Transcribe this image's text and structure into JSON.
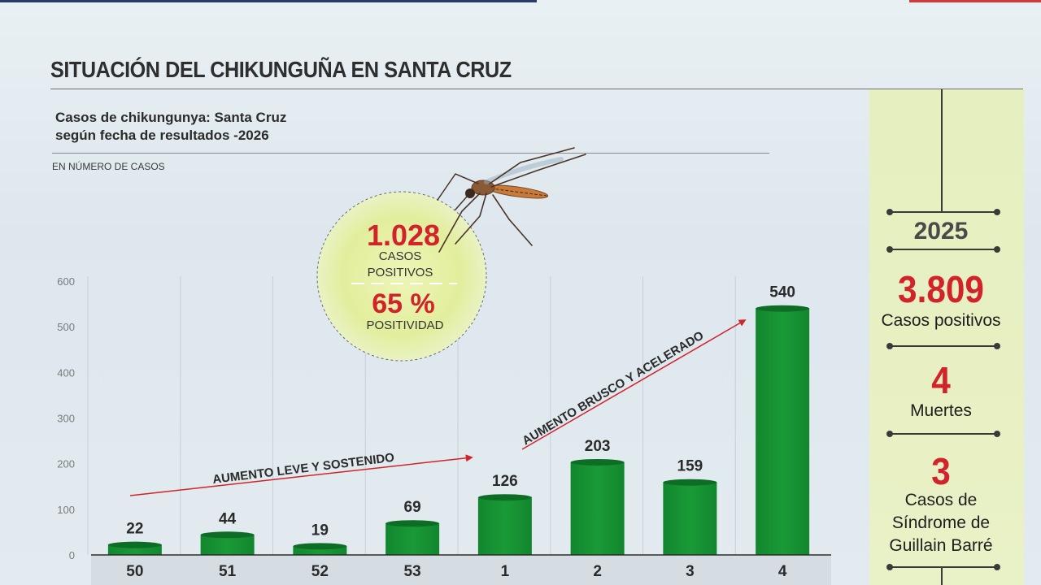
{
  "title": "SITUACIÓN DEL CHIKUNGUÑA EN SANTA CRUZ",
  "subtitle_line1": "Casos de chikungunya: Santa Cruz",
  "subtitle_line2": "según fecha de resultados -2026",
  "unit_note": "EN NÚMERO DE CASOS",
  "highlight": {
    "cases_value": "1.028",
    "cases_line1": "CASOS",
    "cases_line2": "POSITIVOS",
    "positivity_value": "65 %",
    "positivity_label": "POSITIVIDAD"
  },
  "annotations": {
    "slow": "AUMENTO LEVE Y SOSTENIDO",
    "fast": "AUMENTO BRUSCO Y ACELERADO"
  },
  "side_panel": {
    "year": "2025",
    "positive_value": "3.809",
    "positive_label": "Casos positivos",
    "deaths_value": "4",
    "deaths_label": "Muertes",
    "gb_value": "3",
    "gb_line1": "Casos de",
    "gb_line2": "Síndrome de",
    "gb_line3": "Guillain Barré"
  },
  "colors": {
    "bar": "#189233",
    "bar_top": "#0e6d24",
    "accent_red": "#d2232a",
    "panel_bg": "#e7f0c2",
    "circle_bg": "#e4efa6"
  },
  "chart_data": {
    "type": "bar",
    "title": "Casos de chikungunya: Santa Cruz según fecha de resultados -2026",
    "ylabel": "EN NÚMERO DE CASOS",
    "xlabel": "",
    "categories": [
      "50",
      "51",
      "52",
      "53",
      "1",
      "2",
      "3",
      "4"
    ],
    "values": [
      22,
      44,
      19,
      69,
      126,
      203,
      159,
      540
    ],
    "ylim": [
      0,
      600
    ],
    "yticks": [
      0,
      100,
      200,
      300,
      400,
      500,
      600
    ],
    "grid": true,
    "legend": "none"
  }
}
